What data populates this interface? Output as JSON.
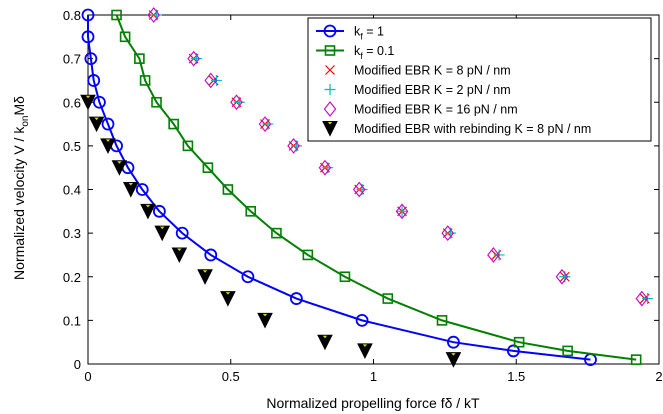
{
  "chart_data": {
    "type": "line",
    "title": "",
    "xlabel": "Normalized propelling force fδ / kT",
    "ylabel_main": "Normalized velocity V / k",
    "ylabel_sub": "on",
    "ylabel_tail": "Mδ",
    "xlim": [
      0,
      2
    ],
    "ylim": [
      0,
      0.8
    ],
    "xticks": [
      0,
      0.5,
      1,
      1.5,
      2
    ],
    "xtick_labels": [
      "0",
      "0.5",
      "1",
      "1.5",
      "2"
    ],
    "yticks": [
      0,
      0.1,
      0.2,
      0.3,
      0.4,
      0.5,
      0.6,
      0.7,
      0.8
    ],
    "ytick_labels": [
      "0",
      "0.1",
      "0.2",
      "0.3",
      "0.4",
      "0.5",
      "0.6",
      "0.7",
      "0.8"
    ],
    "legend_position": "top-right",
    "series": [
      {
        "key": "kf1",
        "legend_main": "k",
        "legend_sub": "f",
        "legend_tail": " = 1",
        "color": "#0000ff",
        "marker": "circle",
        "line": true,
        "points": [
          [
            0.0,
            0.8
          ],
          [
            0.0,
            0.75
          ],
          [
            0.01,
            0.7
          ],
          [
            0.02,
            0.65
          ],
          [
            0.04,
            0.6
          ],
          [
            0.07,
            0.55
          ],
          [
            0.1,
            0.5
          ],
          [
            0.14,
            0.45
          ],
          [
            0.19,
            0.4
          ],
          [
            0.25,
            0.35
          ],
          [
            0.33,
            0.3
          ],
          [
            0.43,
            0.25
          ],
          [
            0.56,
            0.2
          ],
          [
            0.73,
            0.15
          ],
          [
            0.96,
            0.1
          ],
          [
            1.28,
            0.05
          ],
          [
            1.49,
            0.03
          ],
          [
            1.76,
            0.01
          ]
        ]
      },
      {
        "key": "kf01",
        "legend_main": "k",
        "legend_sub": "f",
        "legend_tail": " = 0.1",
        "color": "#008000",
        "marker": "square",
        "line": true,
        "points": [
          [
            0.1,
            0.8
          ],
          [
            0.13,
            0.75
          ],
          [
            0.18,
            0.7
          ],
          [
            0.2,
            0.65
          ],
          [
            0.24,
            0.6
          ],
          [
            0.3,
            0.55
          ],
          [
            0.35,
            0.5
          ],
          [
            0.42,
            0.45
          ],
          [
            0.49,
            0.4
          ],
          [
            0.57,
            0.35
          ],
          [
            0.66,
            0.3
          ],
          [
            0.77,
            0.25
          ],
          [
            0.9,
            0.2
          ],
          [
            1.05,
            0.15
          ],
          [
            1.24,
            0.1
          ],
          [
            1.51,
            0.05
          ],
          [
            1.68,
            0.03
          ],
          [
            1.92,
            0.01
          ]
        ]
      },
      {
        "key": "ebr8",
        "legend_label": "Modified EBR K = 8 pN / nm",
        "color": "#ff0000",
        "marker": "x",
        "line": false,
        "points": [
          [
            0.23,
            0.8
          ],
          [
            0.37,
            0.7
          ],
          [
            0.44,
            0.65
          ],
          [
            0.52,
            0.6
          ],
          [
            0.62,
            0.55
          ],
          [
            0.72,
            0.5
          ],
          [
            0.83,
            0.45
          ],
          [
            0.95,
            0.4
          ],
          [
            1.1,
            0.35
          ],
          [
            1.26,
            0.3
          ],
          [
            1.43,
            0.25
          ],
          [
            1.67,
            0.2
          ],
          [
            1.95,
            0.15
          ]
        ]
      },
      {
        "key": "ebr2",
        "legend_label": "Modified EBR K = 2 pN / nm",
        "color": "#00bfbf",
        "marker": "plus",
        "line": false,
        "points": [
          [
            0.24,
            0.8
          ],
          [
            0.38,
            0.7
          ],
          [
            0.45,
            0.65
          ],
          [
            0.53,
            0.6
          ],
          [
            0.63,
            0.55
          ],
          [
            0.73,
            0.5
          ],
          [
            0.84,
            0.45
          ],
          [
            0.96,
            0.4
          ],
          [
            1.1,
            0.35
          ],
          [
            1.27,
            0.3
          ],
          [
            1.44,
            0.25
          ],
          [
            1.67,
            0.2
          ],
          [
            1.96,
            0.15
          ]
        ]
      },
      {
        "key": "ebr16",
        "legend_label": "Modified EBR K = 16 pN / nm",
        "color": "#cc00cc",
        "marker": "diamond",
        "line": false,
        "points": [
          [
            0.23,
            0.8
          ],
          [
            0.37,
            0.7
          ],
          [
            0.43,
            0.65
          ],
          [
            0.52,
            0.6
          ],
          [
            0.62,
            0.55
          ],
          [
            0.72,
            0.5
          ],
          [
            0.83,
            0.45
          ],
          [
            0.95,
            0.4
          ],
          [
            1.1,
            0.35
          ],
          [
            1.26,
            0.3
          ],
          [
            1.42,
            0.25
          ],
          [
            1.66,
            0.2
          ],
          [
            1.94,
            0.15
          ]
        ]
      },
      {
        "key": "rebind",
        "legend_label": "Modified EBR with rebinding K = 8 pN / nm",
        "color": "#000000",
        "fill": "#d9d900",
        "marker": "triangle-down",
        "line": false,
        "points": [
          [
            0.0,
            0.6
          ],
          [
            0.03,
            0.55
          ],
          [
            0.07,
            0.5
          ],
          [
            0.11,
            0.45
          ],
          [
            0.15,
            0.4
          ],
          [
            0.21,
            0.35
          ],
          [
            0.26,
            0.3
          ],
          [
            0.32,
            0.25
          ],
          [
            0.41,
            0.2
          ],
          [
            0.49,
            0.15
          ],
          [
            0.62,
            0.1
          ],
          [
            0.83,
            0.05
          ],
          [
            0.97,
            0.03
          ],
          [
            1.28,
            0.01
          ]
        ]
      }
    ]
  }
}
